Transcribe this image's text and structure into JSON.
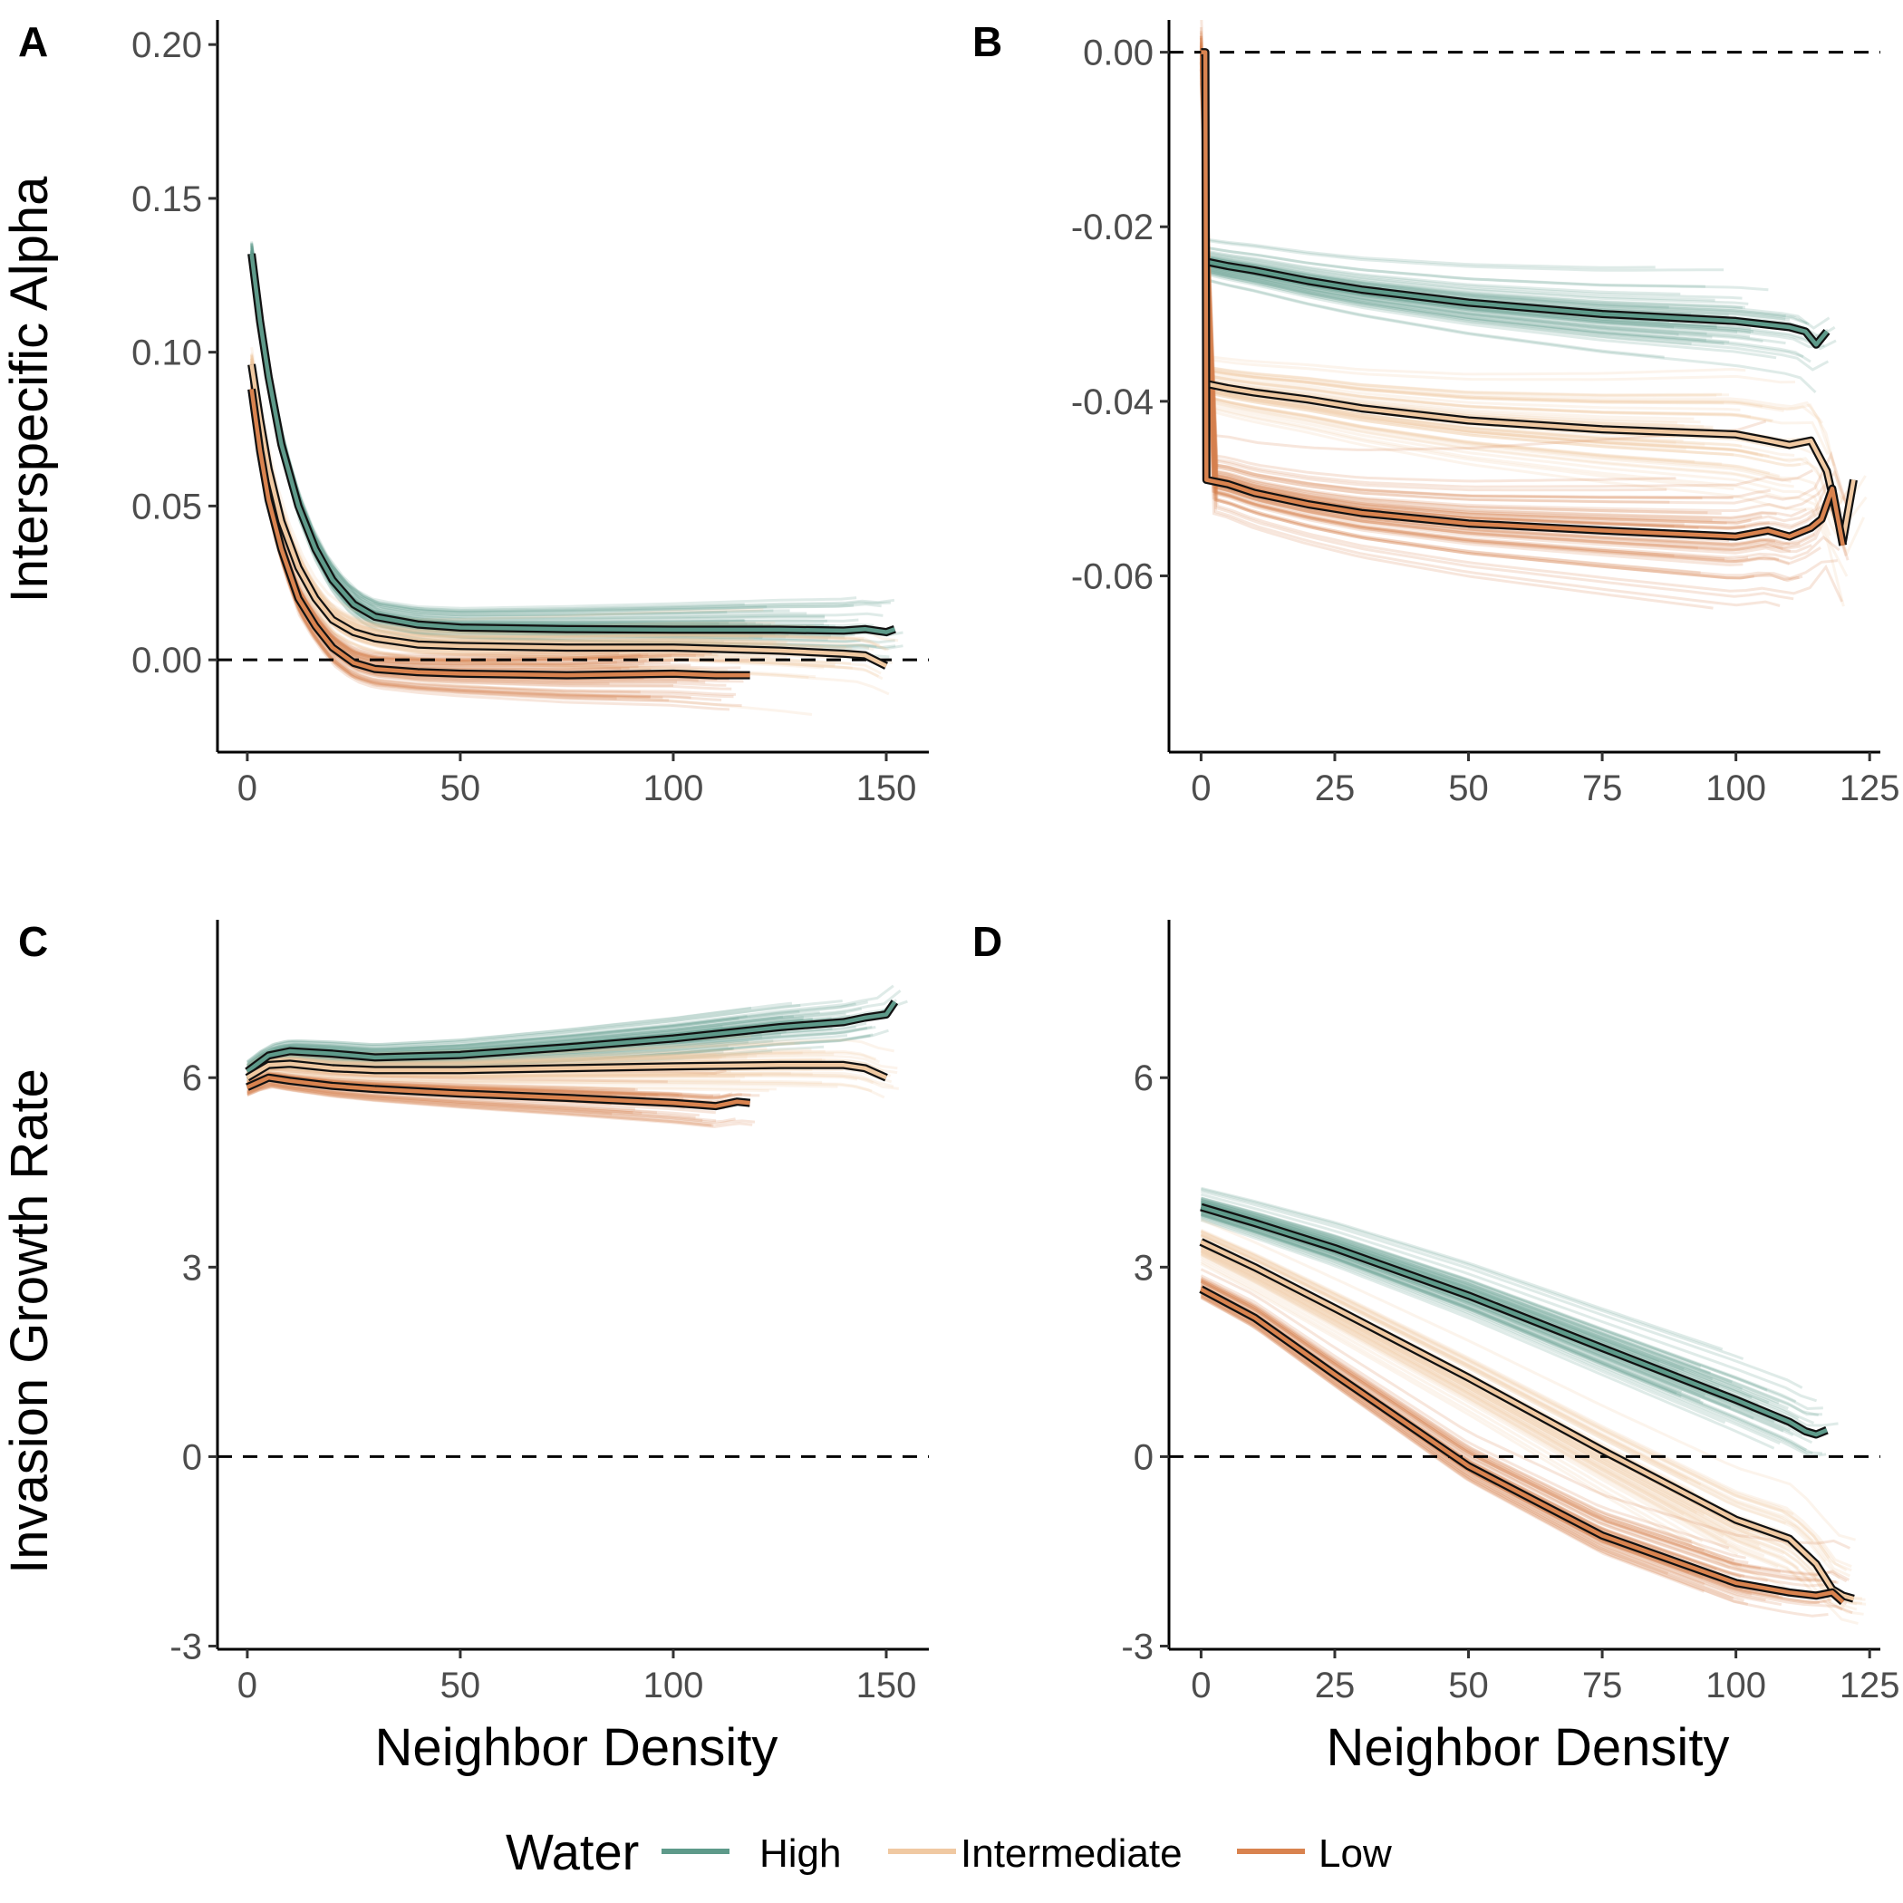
{
  "chart_data": [
    {
      "panel": "A",
      "type": "line",
      "xlabel": "",
      "ylabel": "Interspecific Alpha",
      "xlim": [
        -7,
        160
      ],
      "ylim": [
        -0.03,
        0.208
      ],
      "xticks": [
        0,
        50,
        100,
        150
      ],
      "xtick_labels": [
        "0",
        "50",
        "100",
        "150"
      ],
      "yticks": [
        0,
        0.05,
        0.1,
        0.15,
        0.2
      ],
      "ytick_labels": [
        "0.00",
        "0.05",
        "0.10",
        "0.15",
        "0.20"
      ],
      "hline": 0,
      "series": [
        {
          "name": "High",
          "color": "#5e9a8a",
          "x": [
            1,
            3,
            5,
            8,
            12,
            16,
            20,
            25,
            30,
            40,
            50,
            75,
            100,
            125,
            140,
            145,
            150,
            152
          ],
          "y": [
            0.132,
            0.11,
            0.092,
            0.07,
            0.05,
            0.036,
            0.026,
            0.018,
            0.014,
            0.0115,
            0.0105,
            0.01,
            0.0098,
            0.0098,
            0.0095,
            0.01,
            0.009,
            0.01
          ],
          "spread": 0.007
        },
        {
          "name": "Intermediate",
          "color": "#f0c9a2",
          "x": [
            1,
            3,
            5,
            8,
            12,
            16,
            20,
            25,
            30,
            40,
            50,
            75,
            100,
            125,
            140,
            145,
            150
          ],
          "y": [
            0.096,
            0.078,
            0.062,
            0.045,
            0.03,
            0.02,
            0.013,
            0.009,
            0.007,
            0.005,
            0.0045,
            0.004,
            0.004,
            0.003,
            0.002,
            0.0015,
            -0.002
          ],
          "spread": 0.008
        },
        {
          "name": "Low",
          "color": "#d9834f",
          "x": [
            1,
            3,
            5,
            8,
            12,
            16,
            20,
            25,
            30,
            40,
            50,
            75,
            100,
            110,
            115,
            118
          ],
          "y": [
            0.088,
            0.068,
            0.052,
            0.036,
            0.02,
            0.011,
            0.004,
            -0.001,
            -0.003,
            -0.004,
            -0.0045,
            -0.005,
            -0.0045,
            -0.005,
            -0.005,
            -0.005
          ],
          "spread": 0.007
        }
      ]
    },
    {
      "panel": "B",
      "type": "line",
      "xlabel": "",
      "ylabel": "",
      "xlim": [
        -6,
        127
      ],
      "ylim": [
        -0.0802,
        0.0037
      ],
      "xticks": [
        0,
        25,
        50,
        75,
        100,
        125
      ],
      "xtick_labels": [
        "0",
        "25",
        "50",
        "75",
        "100",
        "125"
      ],
      "yticks": [
        -0.06,
        -0.04,
        -0.02,
        0
      ],
      "ytick_labels": [
        "-0.06",
        "-0.04",
        "-0.02",
        "0.00"
      ],
      "hline": 0,
      "series": [
        {
          "name": "High",
          "color": "#5e9a8a",
          "x": [
            1,
            5,
            10,
            20,
            30,
            50,
            75,
            100,
            110,
            113,
            115,
            117
          ],
          "y": [
            -0.024,
            -0.0245,
            -0.025,
            -0.0262,
            -0.0272,
            -0.0287,
            -0.03,
            -0.0308,
            -0.0315,
            -0.032,
            -0.0335,
            -0.032
          ],
          "spread": 0.0045
        },
        {
          "name": "Intermediate",
          "color": "#f0c9a2",
          "x": [
            1,
            5,
            10,
            20,
            30,
            50,
            75,
            100,
            106,
            110,
            114,
            117,
            120,
            122
          ],
          "y": [
            -0.038,
            -0.0385,
            -0.039,
            -0.0398,
            -0.0408,
            -0.0422,
            -0.0432,
            -0.0438,
            -0.0445,
            -0.045,
            -0.0445,
            -0.048,
            -0.056,
            -0.049
          ],
          "spread": 0.005
        },
        {
          "name": "Low",
          "color": "#d9834f",
          "x": [
            0,
            0.8,
            1,
            5,
            10,
            20,
            30,
            50,
            75,
            100,
            106,
            110,
            114,
            116,
            118,
            120
          ],
          "y": [
            0,
            0,
            -0.049,
            -0.0495,
            -0.0505,
            -0.0518,
            -0.0528,
            -0.054,
            -0.0548,
            -0.0555,
            -0.0548,
            -0.0555,
            -0.0545,
            -0.0535,
            -0.05,
            -0.0565
          ],
          "spread": 0.006
        }
      ]
    },
    {
      "panel": "C",
      "type": "line",
      "xlabel": "Neighbor Density",
      "ylabel": "Invasion Growth Rate",
      "xlim": [
        -7,
        160
      ],
      "ylim": [
        -3.05,
        8.5
      ],
      "xticks": [
        0,
        50,
        100,
        150
      ],
      "xtick_labels": [
        "0",
        "50",
        "100",
        "150"
      ],
      "yticks": [
        -3,
        0,
        3,
        6
      ],
      "ytick_labels": [
        "-3",
        "0",
        "3",
        "6"
      ],
      "hline": 0,
      "series": [
        {
          "name": "High",
          "color": "#5e9a8a",
          "x": [
            0,
            5,
            10,
            20,
            30,
            50,
            75,
            100,
            125,
            140,
            145,
            150,
            152
          ],
          "y": [
            6.1,
            6.35,
            6.42,
            6.38,
            6.32,
            6.36,
            6.48,
            6.62,
            6.8,
            6.88,
            6.95,
            7.0,
            7.2
          ],
          "spread": 0.35
        },
        {
          "name": "Intermediate",
          "color": "#f0c9a2",
          "x": [
            0,
            5,
            10,
            20,
            30,
            50,
            75,
            100,
            125,
            140,
            145,
            150
          ],
          "y": [
            6.0,
            6.2,
            6.22,
            6.15,
            6.12,
            6.12,
            6.15,
            6.18,
            6.2,
            6.2,
            6.15,
            6.0
          ],
          "spread": 0.3
        },
        {
          "name": "Low",
          "color": "#d9834f",
          "x": [
            0,
            5,
            10,
            20,
            30,
            50,
            75,
            100,
            110,
            115,
            118
          ],
          "y": [
            5.85,
            6.0,
            5.95,
            5.87,
            5.82,
            5.75,
            5.68,
            5.6,
            5.55,
            5.62,
            5.6
          ],
          "spread": 0.25
        }
      ]
    },
    {
      "panel": "D",
      "type": "line",
      "xlabel": "Neighbor Density",
      "ylabel": "",
      "xlim": [
        -6,
        127
      ],
      "ylim": [
        -3.05,
        8.5
      ],
      "xticks": [
        0,
        25,
        50,
        75,
        100,
        125
      ],
      "xtick_labels": [
        "0",
        "25",
        "50",
        "75",
        "100",
        "125"
      ],
      "yticks": [
        -3,
        0,
        3,
        6
      ],
      "ytick_labels": [
        "-3",
        "0",
        "3",
        "6"
      ],
      "hline": 0,
      "series": [
        {
          "name": "High",
          "color": "#5e9a8a",
          "x": [
            0,
            10,
            25,
            50,
            75,
            100,
            110,
            113,
            115,
            117
          ],
          "y": [
            3.95,
            3.7,
            3.3,
            2.55,
            1.72,
            0.9,
            0.55,
            0.4,
            0.35,
            0.42
          ],
          "spread": 0.4
        },
        {
          "name": "Intermediate",
          "color": "#f0c9a2",
          "x": [
            0,
            10,
            25,
            50,
            75,
            100,
            110,
            115,
            118,
            120,
            122
          ],
          "y": [
            3.4,
            3.0,
            2.35,
            1.25,
            0.1,
            -1.0,
            -1.3,
            -1.7,
            -2.1,
            -2.2,
            -2.25
          ],
          "spread": 0.45
        },
        {
          "name": "Low",
          "color": "#d9834f",
          "x": [
            0,
            10,
            25,
            50,
            75,
            100,
            110,
            115,
            118,
            120
          ],
          "y": [
            2.65,
            2.2,
            1.3,
            -0.15,
            -1.25,
            -2.0,
            -2.15,
            -2.2,
            -2.15,
            -2.3
          ],
          "spread": 0.4
        }
      ]
    }
  ],
  "legend": {
    "title": "Water",
    "position": "bottom",
    "items": [
      {
        "name": "High",
        "color": "#5e9a8a"
      },
      {
        "name": "Intermediate",
        "color": "#f0c9a2"
      },
      {
        "name": "Low",
        "color": "#d9834f"
      }
    ]
  }
}
